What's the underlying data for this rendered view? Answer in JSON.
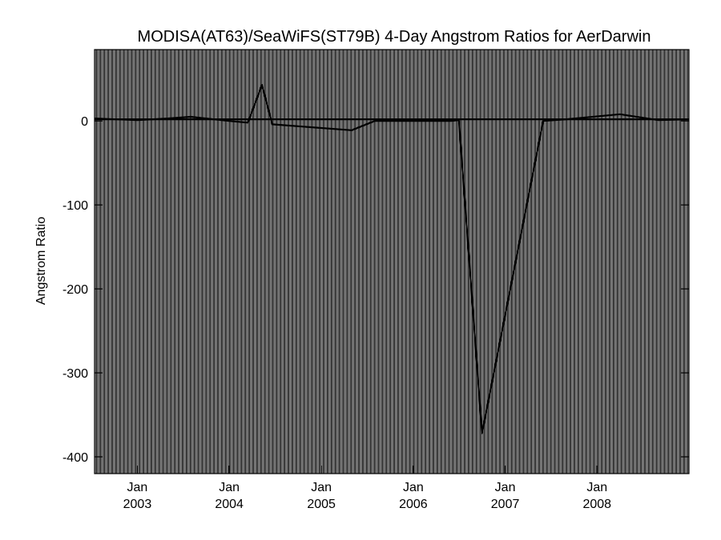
{
  "chart_data": {
    "type": "line",
    "title": "MODISA(AT63)/SeaWiFS(ST79B) 4-Day Angstrom Ratios for AerDarwin",
    "xlabel": "",
    "ylabel": "Angstrom Ratio",
    "ylim": [
      -420,
      85
    ],
    "yticks": [
      0,
      -100,
      -200,
      -300,
      -400
    ],
    "ytick_labels": [
      "0",
      "-100",
      "-200",
      "-300",
      "-400"
    ],
    "xlim": [
      "2002-07-15",
      "2008-12-31"
    ],
    "xticks": [
      {
        "date": "2003-01-01",
        "month": "Jan",
        "year": "2003"
      },
      {
        "date": "2004-01-01",
        "month": "Jan",
        "year": "2004"
      },
      {
        "date": "2005-01-01",
        "month": "Jan",
        "year": "2005"
      },
      {
        "date": "2006-01-01",
        "month": "Jan",
        "year": "2006"
      },
      {
        "date": "2007-01-01",
        "month": "Jan",
        "year": "2007"
      },
      {
        "date": "2008-01-01",
        "month": "Jan",
        "year": "2008"
      }
    ],
    "grid": "vertical, every 4 days",
    "line_color": "#000000",
    "series": [
      {
        "points": [
          {
            "x": "2002-07-15",
            "y": 3
          },
          {
            "x": "2003-01-01",
            "y": 1
          },
          {
            "x": "2003-05-01",
            "y": 3
          },
          {
            "x": "2003-08-01",
            "y": 5
          },
          {
            "x": "2004-01-01",
            "y": 0
          },
          {
            "x": "2004-03-15",
            "y": -2
          },
          {
            "x": "2004-05-10",
            "y": 43
          },
          {
            "x": "2004-06-20",
            "y": -4
          },
          {
            "x": "2005-05-01",
            "y": -11
          },
          {
            "x": "2005-08-01",
            "y": 0
          },
          {
            "x": "2006-06-01",
            "y": 0
          },
          {
            "x": "2006-07-01",
            "y": 1
          },
          {
            "x": "2006-10-01",
            "y": -372
          },
          {
            "x": "2007-06-01",
            "y": 0
          },
          {
            "x": "2007-09-01",
            "y": 2
          },
          {
            "x": "2008-04-01",
            "y": 8
          },
          {
            "x": "2008-09-01",
            "y": 1
          },
          {
            "x": "2008-12-31",
            "y": 2
          }
        ]
      },
      {
        "points": [
          {
            "x": "2002-07-15",
            "y": 2
          },
          {
            "x": "2008-12-31",
            "y": 2
          }
        ]
      }
    ]
  }
}
